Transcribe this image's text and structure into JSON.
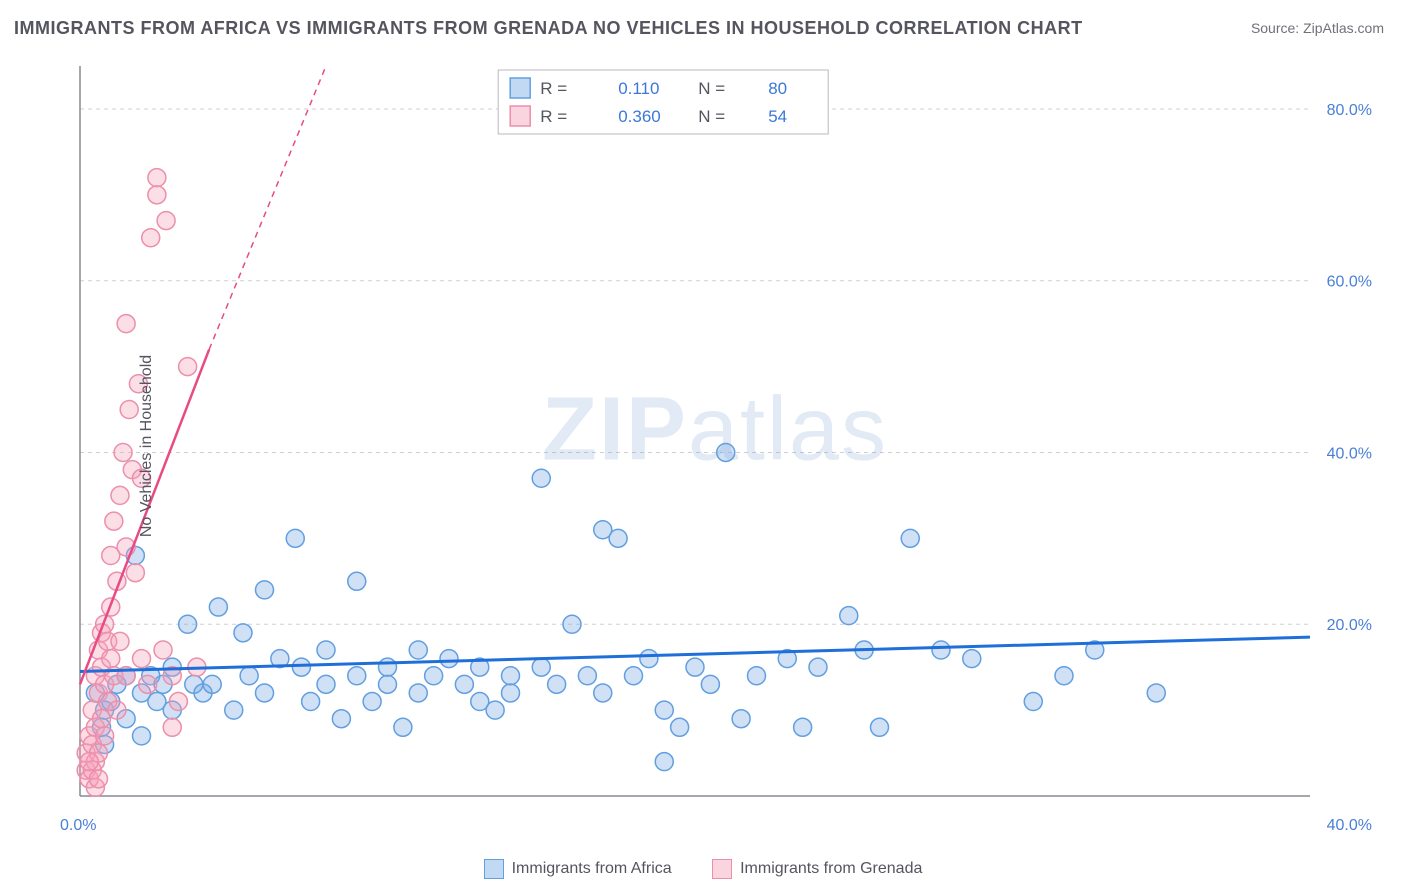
{
  "title": "IMMIGRANTS FROM AFRICA VS IMMIGRANTS FROM GRENADA NO VEHICLES IN HOUSEHOLD CORRELATION CHART",
  "source_label": "Source: ",
  "source_value": "ZipAtlas.com",
  "y_axis_label": "No Vehicles in Household",
  "watermark_a": "ZIP",
  "watermark_b": "atlas",
  "chart": {
    "type": "scatter",
    "background_color": "#ffffff",
    "grid_color": "#cfcfcf",
    "axis_color": "#888890",
    "value_color": "#3b78d8",
    "text_color": "#555560",
    "xlim": [
      0,
      40
    ],
    "ylim": [
      0,
      85
    ],
    "x_ticks": [
      {
        "v": 0,
        "label": "0.0%"
      },
      {
        "v": 40,
        "label": "40.0%"
      }
    ],
    "y_ticks": [
      {
        "v": 20,
        "label": "20.0%"
      },
      {
        "v": 40,
        "label": "40.0%"
      },
      {
        "v": 60,
        "label": "60.0%"
      },
      {
        "v": 80,
        "label": "80.0%"
      }
    ],
    "marker_radius": 9,
    "series": [
      {
        "id": "africa",
        "label": "Immigrants from Africa",
        "color_fill": "rgba(120,170,230,0.35)",
        "color_stroke": "#629fe0",
        "trend_color": "#1e6fd9",
        "R": "0.110",
        "N": "80",
        "trend": {
          "x1": 0,
          "y1": 14.5,
          "x2": 40,
          "y2": 18.5
        },
        "points": [
          [
            0.5,
            12
          ],
          [
            0.7,
            8
          ],
          [
            0.8,
            10
          ],
          [
            0.8,
            6
          ],
          [
            1.0,
            11
          ],
          [
            1.2,
            13
          ],
          [
            1.5,
            9
          ],
          [
            1.5,
            14
          ],
          [
            1.8,
            28
          ],
          [
            2.0,
            12
          ],
          [
            2.0,
            7
          ],
          [
            2.3,
            14
          ],
          [
            2.5,
            11
          ],
          [
            2.7,
            13
          ],
          [
            3.0,
            10
          ],
          [
            3.0,
            15
          ],
          [
            3.5,
            20
          ],
          [
            3.7,
            13
          ],
          [
            4.0,
            12
          ],
          [
            4.3,
            13
          ],
          [
            4.5,
            22
          ],
          [
            5.0,
            10
          ],
          [
            5.3,
            19
          ],
          [
            5.5,
            14
          ],
          [
            6.0,
            24
          ],
          [
            6.0,
            12
          ],
          [
            6.5,
            16
          ],
          [
            7.0,
            30
          ],
          [
            7.2,
            15
          ],
          [
            7.5,
            11
          ],
          [
            8.0,
            17
          ],
          [
            8.0,
            13
          ],
          [
            8.5,
            9
          ],
          [
            9.0,
            25
          ],
          [
            9.0,
            14
          ],
          [
            9.5,
            11
          ],
          [
            10.0,
            15
          ],
          [
            10.0,
            13
          ],
          [
            10.5,
            8
          ],
          [
            11.0,
            17
          ],
          [
            11.0,
            12
          ],
          [
            11.5,
            14
          ],
          [
            12.0,
            16
          ],
          [
            12.5,
            13
          ],
          [
            13.0,
            11
          ],
          [
            13.0,
            15
          ],
          [
            13.5,
            10
          ],
          [
            14.0,
            14
          ],
          [
            14.0,
            12
          ],
          [
            15.0,
            37
          ],
          [
            15.0,
            15
          ],
          [
            15.5,
            13
          ],
          [
            16.0,
            20
          ],
          [
            16.5,
            14
          ],
          [
            17.0,
            31
          ],
          [
            17.0,
            12
          ],
          [
            17.5,
            30
          ],
          [
            18.0,
            14
          ],
          [
            18.5,
            16
          ],
          [
            19.0,
            10
          ],
          [
            19.0,
            4
          ],
          [
            19.5,
            8
          ],
          [
            20.0,
            15
          ],
          [
            20.5,
            13
          ],
          [
            21.0,
            40
          ],
          [
            21.5,
            9
          ],
          [
            22.0,
            14
          ],
          [
            23.0,
            16
          ],
          [
            23.5,
            8
          ],
          [
            24.0,
            15
          ],
          [
            25.0,
            21
          ],
          [
            25.5,
            17
          ],
          [
            26.0,
            8
          ],
          [
            27.0,
            30
          ],
          [
            28.0,
            17
          ],
          [
            29.0,
            16
          ],
          [
            31.0,
            11
          ],
          [
            32.0,
            14
          ],
          [
            33.0,
            17
          ],
          [
            35.0,
            12
          ]
        ]
      },
      {
        "id": "grenada",
        "label": "Immigrants from Grenada",
        "color_fill": "rgba(245,160,185,0.35)",
        "color_stroke": "#ec8fab",
        "trend_color": "#e84b84",
        "R": "0.360",
        "N": "54",
        "trend": {
          "x1": 0,
          "y1": 13,
          "x2": 4.2,
          "y2": 52
        },
        "trend_extrapolate": {
          "x1": 4.2,
          "y1": 52,
          "x2": 8.0,
          "y2": 85
        },
        "points": [
          [
            0.2,
            3
          ],
          [
            0.2,
            5
          ],
          [
            0.3,
            7
          ],
          [
            0.3,
            2
          ],
          [
            0.4,
            10
          ],
          [
            0.4,
            6
          ],
          [
            0.5,
            14
          ],
          [
            0.5,
            8
          ],
          [
            0.5,
            4
          ],
          [
            0.6,
            17
          ],
          [
            0.6,
            12
          ],
          [
            0.6,
            5
          ],
          [
            0.7,
            19
          ],
          [
            0.7,
            9
          ],
          [
            0.7,
            15
          ],
          [
            0.8,
            13
          ],
          [
            0.8,
            20
          ],
          [
            0.8,
            7
          ],
          [
            0.9,
            11
          ],
          [
            0.9,
            18
          ],
          [
            1.0,
            16
          ],
          [
            1.0,
            22
          ],
          [
            1.0,
            28
          ],
          [
            1.1,
            14
          ],
          [
            1.1,
            32
          ],
          [
            1.2,
            25
          ],
          [
            1.2,
            10
          ],
          [
            1.3,
            35
          ],
          [
            1.3,
            18
          ],
          [
            1.4,
            40
          ],
          [
            1.5,
            29
          ],
          [
            1.5,
            14
          ],
          [
            1.5,
            55
          ],
          [
            1.6,
            45
          ],
          [
            1.7,
            38
          ],
          [
            1.8,
            26
          ],
          [
            1.9,
            48
          ],
          [
            2.0,
            16
          ],
          [
            2.0,
            37
          ],
          [
            2.2,
            13
          ],
          [
            2.3,
            65
          ],
          [
            2.5,
            70
          ],
          [
            2.5,
            72
          ],
          [
            2.7,
            17
          ],
          [
            2.8,
            67
          ],
          [
            3.0,
            14
          ],
          [
            3.0,
            8
          ],
          [
            3.2,
            11
          ],
          [
            3.5,
            50
          ],
          [
            3.8,
            15
          ],
          [
            0.4,
            3
          ],
          [
            0.5,
            1
          ],
          [
            0.6,
            2
          ],
          [
            0.3,
            4
          ]
        ]
      }
    ],
    "legend_top": {
      "labels": {
        "R": "R  =",
        "N": "N  ="
      }
    }
  },
  "bottom_legend": {
    "africa": "Immigrants from Africa",
    "grenada": "Immigrants from Grenada"
  }
}
